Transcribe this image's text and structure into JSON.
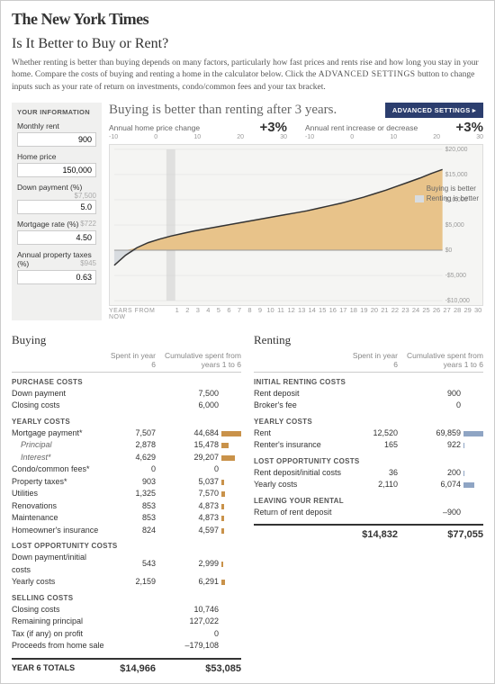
{
  "masthead": "The New York Times",
  "title": "Is It Better to Buy or Rent?",
  "intro": "Whether renting is better than buying depends on many factors, particularly how fast prices and rents rise and how long you stay in your home. Compare the costs of buying and renting a home in the calculator below. Click the ",
  "intro_caps": "ADVANCED SETTINGS",
  "intro2": " button to change inputs such as your rate of return on investments, condo/common fees and your tax bracket.",
  "sidebar_title": "YOUR INFORMATION",
  "inputs": {
    "rent": {
      "label": "Monthly rent",
      "value": "900"
    },
    "price": {
      "label": "Home price",
      "value": "150,000"
    },
    "down": {
      "label": "Down payment (%)",
      "hint": "$7,500",
      "value": "5.0"
    },
    "rate": {
      "label": "Mortgage rate (%)",
      "hint": "$722",
      "value": "4.50"
    },
    "tax": {
      "label": "Annual property taxes (%)",
      "hint": "$945",
      "value": "0.63"
    }
  },
  "headline": "Buying is better than renting after 3 years.",
  "adv_button": "ADVANCED SETTINGS ▸",
  "slider1": {
    "label": "Annual home price change",
    "value": "+3%",
    "ticks": [
      "-10",
      "0",
      "10",
      "20",
      "30"
    ]
  },
  "slider2": {
    "label": "Annual rent increase or decrease",
    "value": "+3%",
    "ticks": [
      "-10",
      "0",
      "10",
      "20",
      "30"
    ]
  },
  "legend": {
    "buy": "Buying is better",
    "rent": "Renting is better"
  },
  "colors": {
    "buy_fill": "#e8c38a",
    "rent_fill": "#d8dce0",
    "line": "#333333",
    "bar_buy": "#c9924a",
    "bar_rent": "#8fa5c4"
  },
  "chart": {
    "x": [
      1,
      2,
      3,
      4,
      5,
      6,
      7,
      8,
      9,
      10,
      11,
      12,
      13,
      14,
      15,
      16,
      17,
      18,
      19,
      20,
      21,
      22,
      23,
      24,
      25,
      26,
      27,
      28,
      29,
      30
    ],
    "y": [
      -3000,
      -1000,
      500,
      1500,
      2200,
      2800,
      3300,
      3800,
      4200,
      4600,
      5000,
      5400,
      5800,
      6200,
      6600,
      7000,
      7400,
      7800,
      8300,
      8800,
      9300,
      9900,
      10500,
      11200,
      11900,
      12700,
      13500,
      14300,
      15200,
      16000
    ],
    "ylim": [
      -10000,
      20000
    ],
    "yticks": [
      "$20,000",
      "$15,000",
      "$10,000",
      "$5,000",
      "$0",
      "-$5,000",
      "-$10,000"
    ],
    "highlight_year": 6
  },
  "years_label": "YEARS FROM NOW",
  "buying": {
    "title": "Buying",
    "head2": "Spent in year 6",
    "head3": "Cumulative spent from years 1 to 6",
    "sections": [
      {
        "label": "PURCHASE COSTS",
        "rows": [
          {
            "name": "Down payment",
            "v2": "",
            "v3": "7,500",
            "bw": 0
          },
          {
            "name": "Closing costs",
            "v2": "",
            "v3": "6,000",
            "bw": 0
          }
        ]
      },
      {
        "label": "YEARLY COSTS",
        "rows": [
          {
            "name": "Mortgage payment*",
            "v2": "7,507",
            "v3": "44,684",
            "bw": 22
          },
          {
            "name": "Principal",
            "v2": "2,878",
            "v3": "15,478",
            "bw": 8,
            "italic": true
          },
          {
            "name": "Interest*",
            "v2": "4,629",
            "v3": "29,207",
            "bw": 15,
            "italic": true
          },
          {
            "name": "Condo/common fees*",
            "v2": "0",
            "v3": "0",
            "bw": 0
          },
          {
            "name": "Property taxes*",
            "v2": "903",
            "v3": "5,037",
            "bw": 3
          },
          {
            "name": "Utilities",
            "v2": "1,325",
            "v3": "7,570",
            "bw": 4
          },
          {
            "name": "Renovations",
            "v2": "853",
            "v3": "4,873",
            "bw": 3
          },
          {
            "name": "Maintenance",
            "v2": "853",
            "v3": "4,873",
            "bw": 3
          },
          {
            "name": "Homeowner's insurance",
            "v2": "824",
            "v3": "4,597",
            "bw": 3
          }
        ]
      },
      {
        "label": "LOST OPPORTUNITY COSTS",
        "rows": [
          {
            "name": "Down payment/initial costs",
            "v2": "543",
            "v3": "2,999",
            "bw": 2
          },
          {
            "name": "Yearly costs",
            "v2": "2,159",
            "v3": "6,291",
            "bw": 4
          }
        ]
      },
      {
        "label": "SELLING COSTS",
        "rows": [
          {
            "name": "Closing costs",
            "v2": "",
            "v3": "10,746",
            "bw": 0
          },
          {
            "name": "Remaining principal",
            "v2": "",
            "v3": "127,022",
            "bw": 0
          },
          {
            "name": "Tax (if any) on profit",
            "v2": "",
            "v3": "0",
            "bw": 0
          },
          {
            "name": "Proceeds from home sale",
            "v2": "",
            "v3": "–179,108",
            "bw": 0
          }
        ]
      }
    ],
    "total_label": "YEAR 6 TOTALS",
    "total2": "$14,966",
    "total3": "$53,085"
  },
  "renting": {
    "title": "Renting",
    "head2": "Spent in year 6",
    "head3": "Cumulative spent from years 1 to 6",
    "sections": [
      {
        "label": "INITIAL RENTING COSTS",
        "rows": [
          {
            "name": "Rent deposit",
            "v2": "",
            "v3": "900",
            "bw": 0
          },
          {
            "name": "Broker's fee",
            "v2": "",
            "v3": "0",
            "bw": 0
          }
        ]
      },
      {
        "label": "YEARLY COSTS",
        "rows": [
          {
            "name": "Rent",
            "v2": "12,520",
            "v3": "69,859",
            "bw": 22
          },
          {
            "name": "Renter's insurance",
            "v2": "165",
            "v3": "922",
            "bw": 1
          }
        ]
      },
      {
        "label": "LOST OPPORTUNITY COSTS",
        "rows": [
          {
            "name": "Rent deposit/initial costs",
            "v2": "36",
            "v3": "200",
            "bw": 1
          },
          {
            "name": "Yearly costs",
            "v2": "2,110",
            "v3": "6,074",
            "bw": 12
          }
        ]
      },
      {
        "label": "LEAVING YOUR RENTAL",
        "rows": [
          {
            "name": "Return of rent deposit",
            "v2": "",
            "v3": "–900",
            "bw": 0
          }
        ]
      }
    ],
    "total_label": "",
    "total2": "$14,832",
    "total3": "$77,055"
  }
}
